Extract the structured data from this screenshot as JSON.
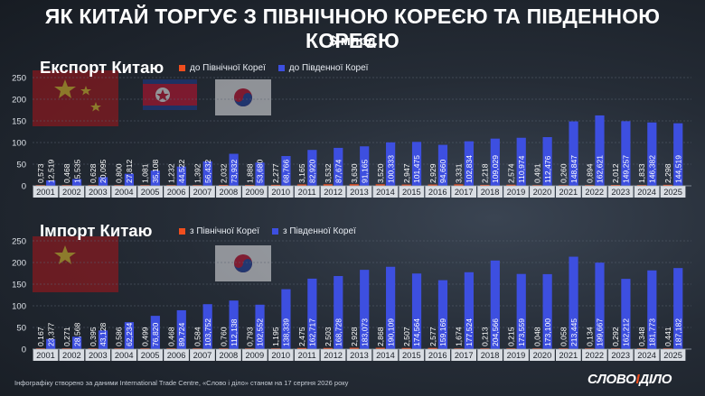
{
  "header": {
    "title": "ЯК КИТАЙ ТОРГУЄ З ПІВНІЧНОЮ КОРЕЄЮ ТА ПІВДЕННОЮ КОРЕЄЮ",
    "subtitle": "$ млрд"
  },
  "colors": {
    "north": "#f04e1e",
    "south": "#3d4fe0",
    "bg": "#222a34",
    "cat_box": "#d9dde3"
  },
  "footer": {
    "note": "Інфографіку створено за даними International Trade Centre, «Слово і діло» станом на 17 серпня 2026 року",
    "logo_part1": "СЛОВО",
    "logo_amp": "І",
    "logo_part2": "ДІЛО"
  },
  "chart_data": [
    {
      "type": "bar",
      "title": "Експорт Китаю",
      "legend": [
        "до Північної Кореї",
        "до Південної Кореї"
      ],
      "yticks": [
        "0",
        "50",
        "100",
        "150",
        "200",
        "250"
      ],
      "ylim": [
        0,
        250
      ],
      "categories": [
        "2001",
        "2002",
        "2003",
        "2004",
        "2005",
        "2006",
        "2007",
        "2008",
        "2009",
        "2010",
        "2011",
        "2012",
        "2013",
        "2014",
        "2015",
        "2016",
        "2017",
        "2018",
        "2019",
        "2020",
        "2021",
        "2022",
        "2023",
        "2024",
        "2025"
      ],
      "series": [
        {
          "name": "до Північної Кореї",
          "values": [
            0.573,
            0.468,
            0.628,
            0.8,
            1.081,
            1.232,
            1.392,
            2.032,
            1.888,
            2.277,
            3.165,
            3.532,
            3.63,
            3.52,
            2.947,
            2.929,
            3.331,
            2.218,
            2.574,
            0.491,
            0.26,
            0.894,
            2.012,
            1.833,
            2.298
          ],
          "labels": [
            "0,573",
            "0,468",
            "0,628",
            "0,800",
            "1,081",
            "1,232",
            "1,392",
            "2,032",
            "1,888",
            "2,277",
            "3,165",
            "3,532",
            "3,630",
            "3,520",
            "2,947",
            "2,929",
            "3,331",
            "2,218",
            "2,574",
            "0,491",
            "0,260",
            "0,894",
            "2,012",
            "1,833",
            "2,298"
          ]
        },
        {
          "name": "до Південної Кореї",
          "values": [
            12.519,
            15.535,
            20.095,
            27.812,
            35.108,
            44.522,
            56.432,
            73.932,
            53.68,
            68.766,
            82.92,
            87.674,
            91.165,
            100.333,
            101.475,
            94.66,
            102.834,
            109.029,
            110.974,
            112.476,
            148.847,
            162.621,
            149.257,
            146.382,
            144.519
          ],
          "labels": [
            "12,519",
            "15,535",
            "20,095",
            "27,812",
            "35,108",
            "44,522",
            "56,432",
            "73,932",
            "53,680",
            "68,766",
            "82,920",
            "87,674",
            "91,165",
            "100,333",
            "101,475",
            "94,660",
            "102,834",
            "109,029",
            "110,974",
            "112,476",
            "148,847",
            "162,621",
            "149,257",
            "146,382",
            "144,519"
          ]
        }
      ]
    },
    {
      "type": "bar",
      "title": "Імпорт Китаю",
      "legend": [
        "з Північної Кореї",
        "з Південної Кореї"
      ],
      "yticks": [
        "0",
        "50",
        "100",
        "150",
        "200",
        "250"
      ],
      "ylim": [
        0,
        250
      ],
      "categories": [
        "2001",
        "2002",
        "2003",
        "2004",
        "2005",
        "2006",
        "2007",
        "2008",
        "2009",
        "2010",
        "2011",
        "2012",
        "2013",
        "2014",
        "2015",
        "2016",
        "2017",
        "2018",
        "2019",
        "2020",
        "2021",
        "2022",
        "2023",
        "2024",
        "2025"
      ],
      "series": [
        {
          "name": "з Північної Кореї",
          "values": [
            0.167,
            0.271,
            0.395,
            0.586,
            0.499,
            0.468,
            0.584,
            0.76,
            0.793,
            1.195,
            2.475,
            2.503,
            2.928,
            2.868,
            2.507,
            2.577,
            1.674,
            0.213,
            0.215,
            0.048,
            0.058,
            0.134,
            0.292,
            0.348,
            0.441
          ],
          "labels": [
            "0,167",
            "0,271",
            "0,395",
            "0,586",
            "0,499",
            "0,468",
            "0,584",
            "0,760",
            "0,793",
            "1,195",
            "2,475",
            "2,503",
            "2,928",
            "2,868",
            "2,507",
            "2,577",
            "1,674",
            "0,213",
            "0,215",
            "0,048",
            "0,058",
            "0,134",
            "0,292",
            "0,348",
            "0,441"
          ]
        },
        {
          "name": "з Південної Кореї",
          "values": [
            23.377,
            28.568,
            43.128,
            62.234,
            76.82,
            89.724,
            103.752,
            112.138,
            102.552,
            138.339,
            162.717,
            168.728,
            183.073,
            190.109,
            174.564,
            159.169,
            177.524,
            204.566,
            173.559,
            173.1,
            213.445,
            199.667,
            162.212,
            181.773,
            187.182
          ],
          "labels": [
            "23,377",
            "28,568",
            "43,128",
            "62,234",
            "76,820",
            "89,724",
            "103,752",
            "112,138",
            "102,552",
            "138,339",
            "162,717",
            "168,728",
            "183,073",
            "190,109",
            "174,564",
            "159,169",
            "177,524",
            "204,566",
            "173,559",
            "173,100",
            "213,445",
            "199,667",
            "162,212",
            "181,773",
            "187,182"
          ]
        }
      ]
    }
  ]
}
